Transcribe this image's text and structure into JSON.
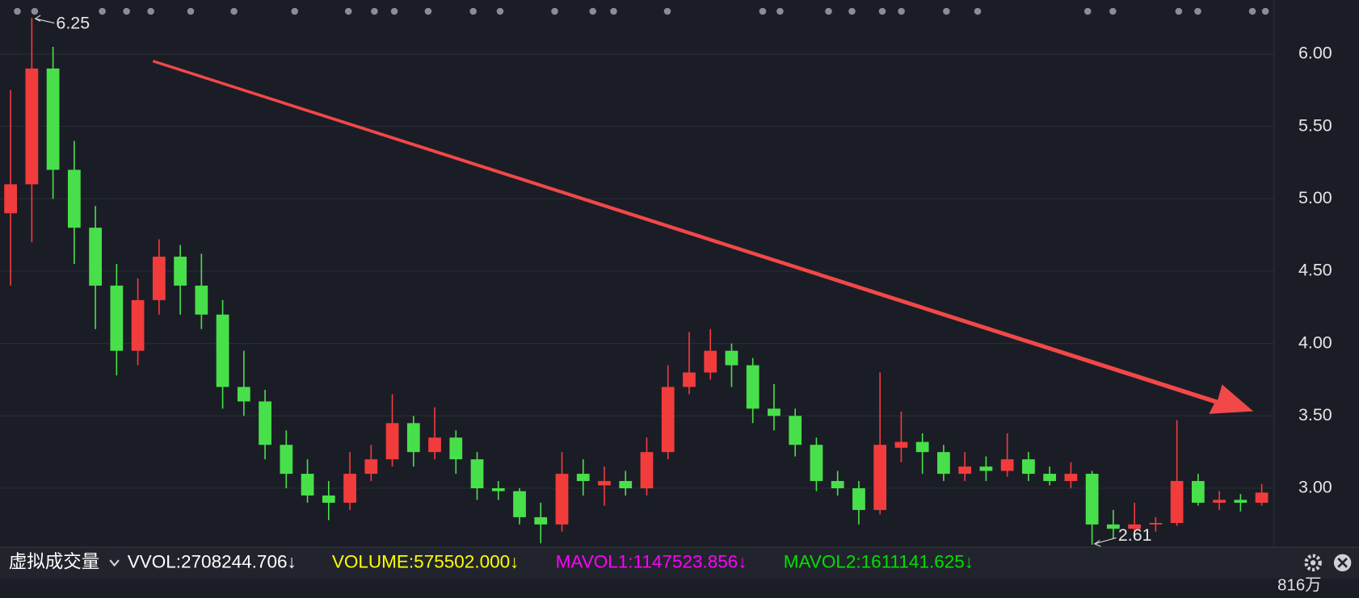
{
  "chart_data": {
    "type": "candlestick",
    "ylim": [
      2.605,
      6.373
    ],
    "yticks": [
      {
        "value": 3,
        "label": "3.00"
      },
      {
        "value": 3.5,
        "label": "3.50"
      },
      {
        "value": 4,
        "label": "4.00"
      },
      {
        "value": 4.5,
        "label": "4.50"
      },
      {
        "value": 5,
        "label": "5.00"
      },
      {
        "value": 5.5,
        "label": "5.50"
      },
      {
        "value": 6,
        "label": "6.00"
      }
    ],
    "grid": true,
    "up_color": "#f23c3c",
    "down_color": "#48e04a",
    "high_label": 6.25,
    "low_label": 2.61,
    "ohlc": [
      [
        4.9,
        5.75,
        4.4,
        5.1
      ],
      [
        5.1,
        6.25,
        4.7,
        5.9
      ],
      [
        5.9,
        6.05,
        5.0,
        5.2
      ],
      [
        5.2,
        5.4,
        4.55,
        4.8
      ],
      [
        4.8,
        4.95,
        4.1,
        4.4
      ],
      [
        4.4,
        4.55,
        3.78,
        3.95
      ],
      [
        3.95,
        4.45,
        3.85,
        4.3
      ],
      [
        4.3,
        4.72,
        4.2,
        4.6
      ],
      [
        4.6,
        4.68,
        4.2,
        4.4
      ],
      [
        4.4,
        4.62,
        4.1,
        4.2
      ],
      [
        4.2,
        4.3,
        3.55,
        3.7
      ],
      [
        3.7,
        3.95,
        3.5,
        3.6
      ],
      [
        3.6,
        3.68,
        3.2,
        3.3
      ],
      [
        3.3,
        3.4,
        3.0,
        3.1
      ],
      [
        3.1,
        3.2,
        2.9,
        2.95
      ],
      [
        2.95,
        3.05,
        2.78,
        2.9
      ],
      [
        2.9,
        3.25,
        2.85,
        3.1
      ],
      [
        3.1,
        3.3,
        3.05,
        3.2
      ],
      [
        3.2,
        3.65,
        3.15,
        3.45
      ],
      [
        3.45,
        3.5,
        3.15,
        3.25
      ],
      [
        3.25,
        3.56,
        3.2,
        3.35
      ],
      [
        3.35,
        3.4,
        3.1,
        3.2
      ],
      [
        3.2,
        3.25,
        2.92,
        3.0
      ],
      [
        3.0,
        3.05,
        2.92,
        2.98
      ],
      [
        2.98,
        3.0,
        2.75,
        2.8
      ],
      [
        2.8,
        2.9,
        2.62,
        2.75
      ],
      [
        2.75,
        3.25,
        2.7,
        3.1
      ],
      [
        3.1,
        3.2,
        2.95,
        3.05
      ],
      [
        3.02,
        3.15,
        2.88,
        3.05
      ],
      [
        3.05,
        3.12,
        2.95,
        3.0
      ],
      [
        3.0,
        3.35,
        2.95,
        3.25
      ],
      [
        3.25,
        3.85,
        3.2,
        3.7
      ],
      [
        3.7,
        4.08,
        3.65,
        3.8
      ],
      [
        3.8,
        4.1,
        3.75,
        3.95
      ],
      [
        3.95,
        4.0,
        3.7,
        3.85
      ],
      [
        3.85,
        3.9,
        3.45,
        3.55
      ],
      [
        3.55,
        3.72,
        3.4,
        3.5
      ],
      [
        3.5,
        3.55,
        3.22,
        3.3
      ],
      [
        3.3,
        3.35,
        2.98,
        3.05
      ],
      [
        3.05,
        3.12,
        2.95,
        3.0
      ],
      [
        3.0,
        3.05,
        2.75,
        2.85
      ],
      [
        2.85,
        3.8,
        2.82,
        3.3
      ],
      [
        3.28,
        3.53,
        3.18,
        3.32
      ],
      [
        3.32,
        3.38,
        3.1,
        3.25
      ],
      [
        3.25,
        3.3,
        3.05,
        3.1
      ],
      [
        3.1,
        3.25,
        3.05,
        3.15
      ],
      [
        3.15,
        3.22,
        3.05,
        3.12
      ],
      [
        3.12,
        3.38,
        3.08,
        3.2
      ],
      [
        3.2,
        3.25,
        3.05,
        3.1
      ],
      [
        3.1,
        3.15,
        3.02,
        3.05
      ],
      [
        3.05,
        3.18,
        3.0,
        3.1
      ],
      [
        3.1,
        3.12,
        2.61,
        2.75
      ],
      [
        2.75,
        2.85,
        2.65,
        2.72
      ],
      [
        2.72,
        2.9,
        2.68,
        2.75
      ],
      [
        2.75,
        2.8,
        2.7,
        2.76
      ],
      [
        2.76,
        3.47,
        2.74,
        3.05
      ],
      [
        3.05,
        3.1,
        2.88,
        2.9
      ],
      [
        2.9,
        2.98,
        2.85,
        2.92
      ],
      [
        2.92,
        2.96,
        2.84,
        2.9
      ],
      [
        2.9,
        3.03,
        2.88,
        2.97
      ]
    ],
    "indicator_title": "虚拟成交量",
    "indicators": [
      {
        "text": "VVOL:2708244.706↓",
        "color": "#ffffff"
      },
      {
        "text": "VOLUME:575502.000↓",
        "color": "#ffff00"
      },
      {
        "text": "MAVOL1:1147523.856↓",
        "color": "#ff00ff"
      },
      {
        "text": "MAVOL2:1611141.625↓",
        "color": "#00e000"
      }
    ],
    "volume_axis_label": "816万"
  }
}
